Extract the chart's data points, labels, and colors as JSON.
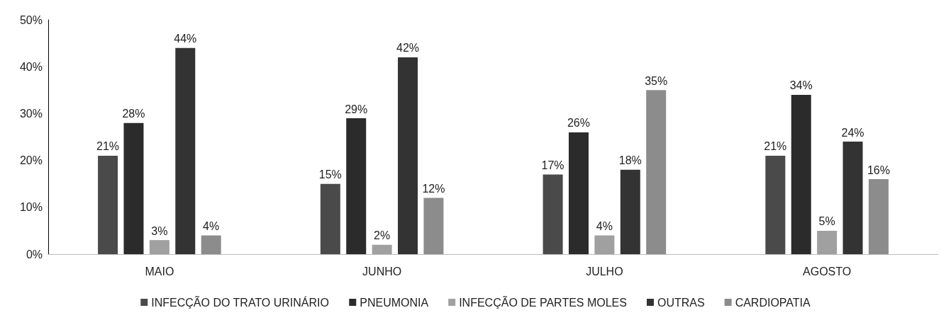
{
  "chart_data": {
    "type": "bar",
    "categories": [
      "MAIO",
      "JUNHO",
      "JULHO",
      "AGOSTO"
    ],
    "series": [
      {
        "name": "INFECÇÃO DO TRATO URINÁRIO",
        "color": "#4a4a4a",
        "values": [
          21,
          15,
          17,
          21
        ],
        "value_labels": [
          "21%",
          "15%",
          "17%",
          "21%"
        ]
      },
      {
        "name": "PNEUMONIA",
        "color": "#2b2b2b",
        "values": [
          28,
          29,
          26,
          34
        ],
        "value_labels": [
          "28%",
          "29%",
          "26%",
          "34%"
        ]
      },
      {
        "name": "INFECÇÃO DE PARTES MOLES",
        "color": "#a0a0a0",
        "values": [
          3,
          2,
          4,
          5
        ],
        "value_labels": [
          "3%",
          "2%",
          "4%",
          "5%"
        ]
      },
      {
        "name": "OUTRAS",
        "color": "#333333",
        "values": [
          44,
          42,
          18,
          24
        ],
        "value_labels": [
          "44%",
          "42%",
          "18%",
          "24%"
        ]
      },
      {
        "name": "CARDIOPATIA",
        "color": "#8c8c8c",
        "values": [
          4,
          12,
          35,
          16
        ],
        "value_labels": [
          "4%",
          "12%",
          "35%",
          "16%"
        ]
      }
    ],
    "ylim": [
      0,
      50
    ],
    "yticks": [
      {
        "value": 0,
        "label": "0%"
      },
      {
        "value": 10,
        "label": "10%"
      },
      {
        "value": 20,
        "label": "20%"
      },
      {
        "value": 30,
        "label": "30%"
      },
      {
        "value": 40,
        "label": "40%"
      },
      {
        "value": 50,
        "label": "50%"
      }
    ],
    "grid": false,
    "legend": "bottom"
  }
}
